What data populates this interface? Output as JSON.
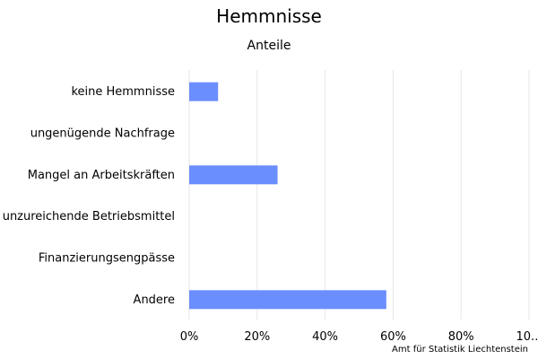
{
  "chart_data": {
    "type": "bar",
    "orientation": "horizontal",
    "title": "Hemmnisse",
    "subtitle": "Anteile",
    "source": "Amt für Statistik Liechtenstein",
    "categories": [
      "keine Hemmnisse",
      "ungenügende Nachfrage",
      "Mangel an Arbeitskräften",
      "unzureichende Betriebsmittel",
      "Finanzierungsengpässe",
      "Andere"
    ],
    "values": [
      8.5,
      0,
      26,
      0,
      0,
      58
    ],
    "xlim": [
      0,
      100
    ],
    "x_ticks": [
      "0%",
      "20%",
      "40%",
      "60%",
      "80%",
      "10..."
    ],
    "grid": true,
    "bar_color": "#6b8eff",
    "grid_color": "#e6e6e6"
  }
}
